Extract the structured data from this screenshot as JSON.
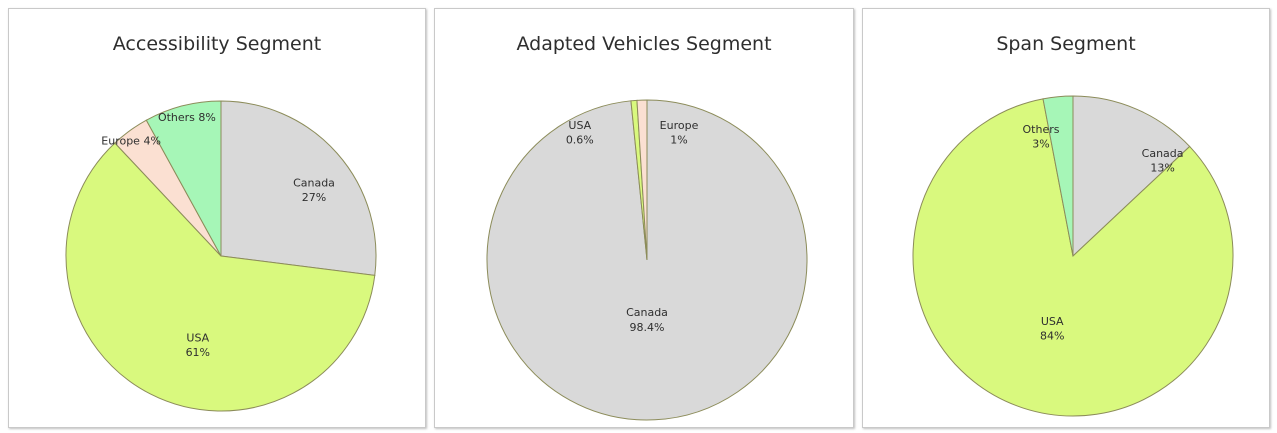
{
  "colors": {
    "Canada": "#d9d9d9",
    "USA": "#d9f97e",
    "Europe": "#fbe0d2",
    "Others": "#a6f6b7"
  },
  "chart_data": [
    {
      "type": "pie",
      "title": "Accessibility Segment",
      "slices": [
        {
          "name": "Canada",
          "value": 27,
          "label": "Canada",
          "pct": "27%"
        },
        {
          "name": "USA",
          "value": 61,
          "label": "USA",
          "pct": "61%"
        },
        {
          "name": "Europe",
          "value": 4,
          "label": "Europe",
          "pct": "4%"
        },
        {
          "name": "Others",
          "value": 8,
          "label": "Others",
          "pct": "8%"
        }
      ]
    },
    {
      "type": "pie",
      "title": "Adapted Vehicles Segment",
      "slices": [
        {
          "name": "Canada",
          "value": 98.4,
          "label": "Canada",
          "pct": "98.4%"
        },
        {
          "name": "USA",
          "value": 0.6,
          "label": "USA",
          "pct": "0.6%"
        },
        {
          "name": "Europe",
          "value": 1,
          "label": "Europe",
          "pct": "1%"
        }
      ]
    },
    {
      "type": "pie",
      "title": "Span Segment",
      "slices": [
        {
          "name": "Canada",
          "value": 13,
          "label": "Canada",
          "pct": "13%"
        },
        {
          "name": "USA",
          "value": 84,
          "label": "USA",
          "pct": "84%"
        },
        {
          "name": "Others",
          "value": 3,
          "label": "Others",
          "pct": "3%"
        }
      ]
    }
  ]
}
